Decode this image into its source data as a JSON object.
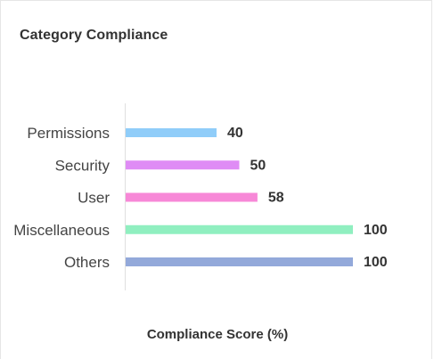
{
  "card": {
    "title": "Category Compliance"
  },
  "chart_data": {
    "type": "bar",
    "orientation": "horizontal",
    "title": "Category Compliance",
    "xlabel": "Compliance Score (%)",
    "ylabel": "",
    "xlim": [
      0,
      100
    ],
    "grid": false,
    "categories": [
      "Permissions",
      "Security",
      "User",
      "Miscellaneous",
      "Others"
    ],
    "values": [
      40,
      50,
      58,
      100,
      100
    ],
    "value_labels": [
      "40",
      "50",
      "58",
      "100",
      "100"
    ],
    "colors": [
      "#90cdf9",
      "#df8cf5",
      "#f788d7",
      "#90efc0",
      "#93a9da"
    ]
  }
}
